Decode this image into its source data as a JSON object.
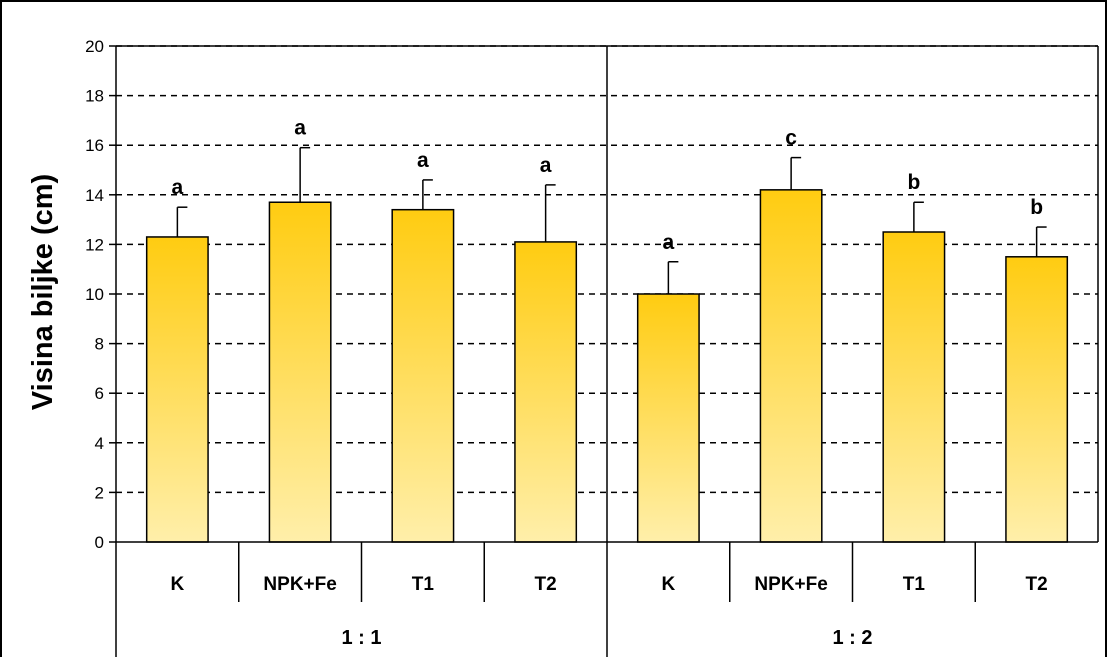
{
  "chart_data": {
    "type": "bar",
    "ylabel": "Visina biljke (cm)",
    "ylim": [
      0,
      20
    ],
    "yticks": [
      0,
      2,
      4,
      6,
      8,
      10,
      12,
      14,
      16,
      18,
      20
    ],
    "grid": "dashed horizontal",
    "groups": [
      {
        "label": "1 : 1",
        "categories": [
          "K",
          "NPK+Fe",
          "T1",
          "T2"
        ],
        "values": [
          12.3,
          13.7,
          13.4,
          12.1
        ],
        "errors": [
          1.2,
          2.2,
          1.2,
          2.3
        ],
        "letters": [
          "a",
          "a",
          "a",
          "a"
        ]
      },
      {
        "label": "1 : 2",
        "categories": [
          "K",
          "NPK+Fe",
          "T1",
          "T2"
        ],
        "values": [
          10.0,
          14.2,
          12.5,
          11.5
        ],
        "errors": [
          1.3,
          1.3,
          1.2,
          1.2
        ],
        "letters": [
          "a",
          "c",
          "b",
          "b"
        ]
      }
    ],
    "colors": {
      "bar_top": "#FFCC11",
      "bar_bottom": "#FFEFAA",
      "outline": "#000000"
    }
  }
}
